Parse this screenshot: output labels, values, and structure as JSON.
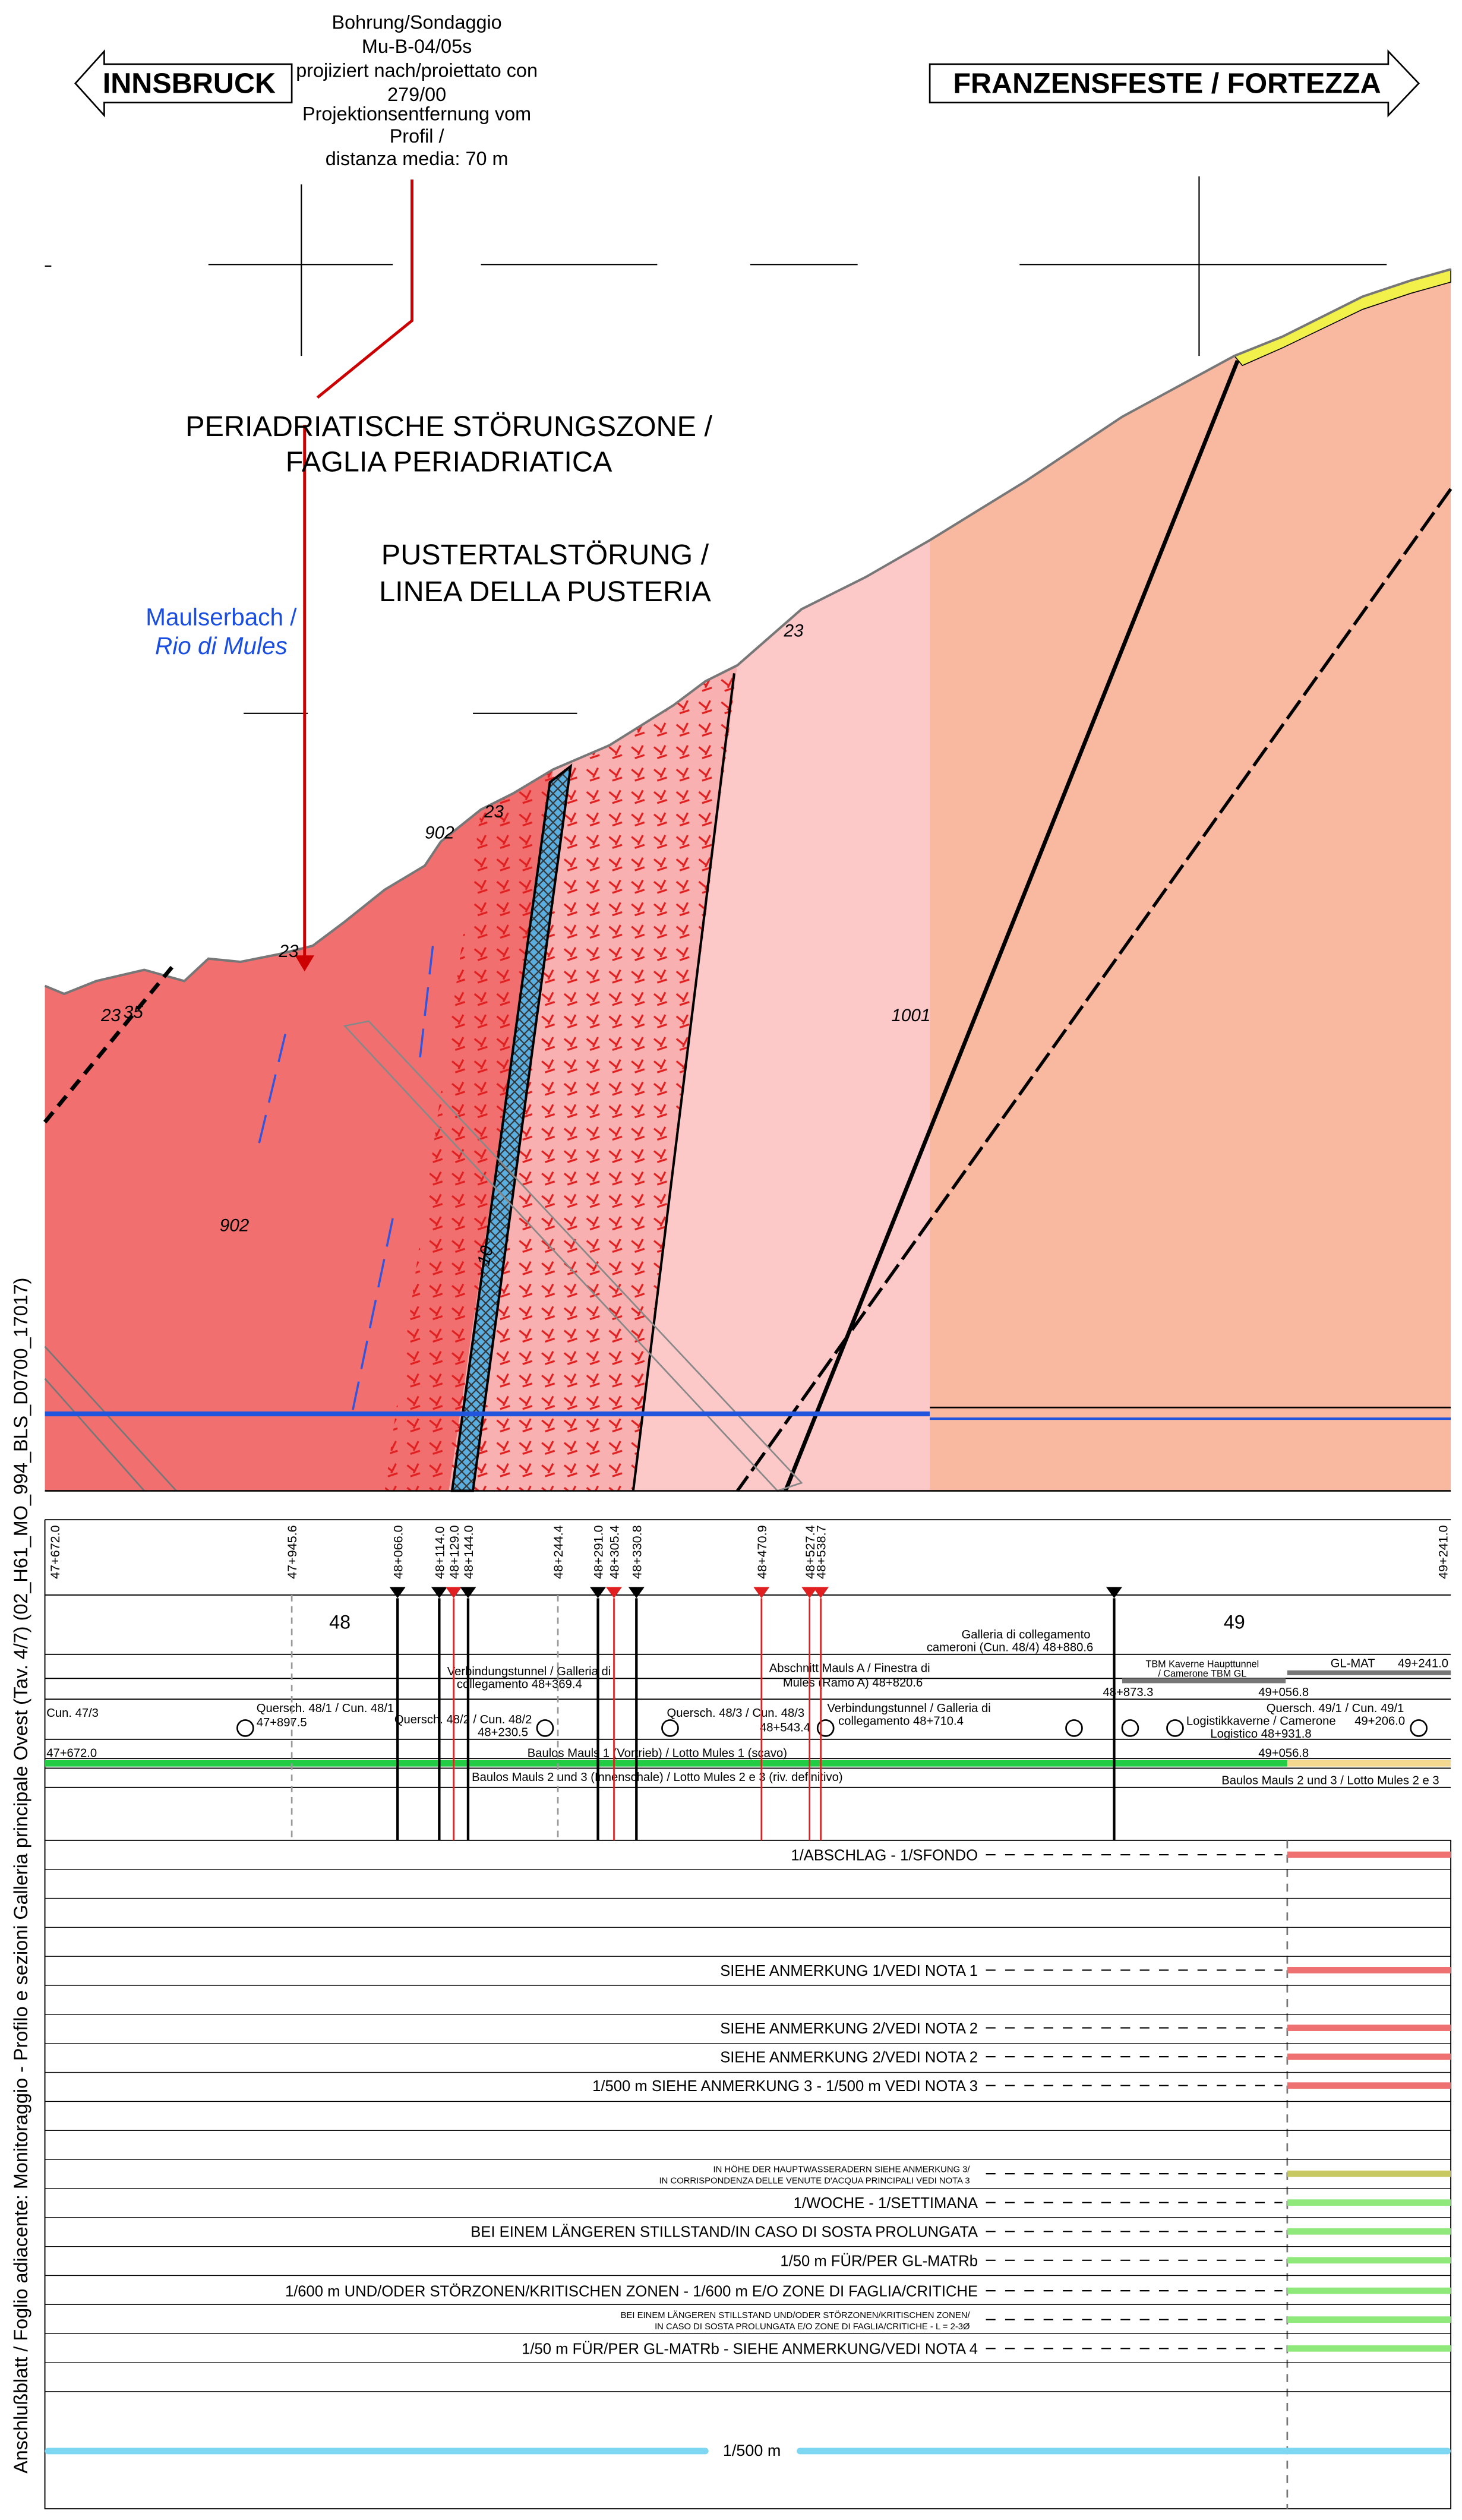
{
  "header": {
    "left": "INNSBRUCK",
    "right": "FRANZENSFESTE / FORTEZZA"
  },
  "borehole": [
    "Bohrung/Sondaggio",
    "Mu-B-04/05s",
    "projiziert nach/proiettato con",
    "279/00",
    "Projektionsentfernung vom",
    "Profil /",
    "distanza media: 70 m"
  ],
  "profile": {
    "fault_periadriatic": [
      "PERIADRIATISCHE STÖRUNGSZONE /",
      "FAGLIA PERIADRIATICA"
    ],
    "fault_pustertal": [
      "PUSTERTALSTÖRUNG /",
      "LINEA DELLA PUSTERIA"
    ],
    "stream": [
      "Maulserbach /",
      "Rio di Mules"
    ],
    "labels": [
      "23",
      "35",
      "23",
      "902",
      "23",
      "23",
      "902",
      "1001",
      "10"
    ]
  },
  "side_note": "Anschlußblatt / Foglio adiacente: Monitoraggio - Profilo e sezioni Galleria principale Ovest (Tav. 4/7) (02_H61_MO_994_BLS_D0700_17017)",
  "stations": {
    "labels": [
      "47+672.0",
      "47+945.6",
      "48+066.0",
      "48+114.0",
      "48+129.0",
      "48+144.0",
      "48+244.4",
      "48+291.0",
      "48+305.4",
      "48+330.8",
      "48+470.9",
      "48+527.4",
      "48+538.7",
      "49+241.0"
    ],
    "km": [
      "48",
      "49"
    ]
  },
  "structures": [
    "Galleria di collegamento",
    "cameroni (Cun. 48/4) 48+880.6",
    "TBM Kaverne Haupttunnel",
    "/ Camerone TBM GL",
    "GL-MAT",
    "49+241.0",
    "Verbindungstunnel / Galleria di",
    "collegamento 48+369.4",
    "Abschnitt Mauls A / Finestra di",
    "Mules (Ramo A) 48+820.6",
    "48+873.3",
    "49+056.8",
    "Cun. 47/3",
    "Quersch. 48/1 / Cun. 48/1",
    "47+897.5",
    "Quersch. 48/2 / Cun. 48/2",
    "48+230.5",
    "Quersch. 48/3 / Cun. 48/3",
    "48+543.4",
    "Verbindungstunnel / Galleria di",
    "collegamento 48+710.4",
    "Logistikkaverne / Camerone",
    "Logistico 48+931.8",
    "Quersch. 49/1 / Cun. 49/1",
    "49+206.0",
    "47+672.0",
    "Baulos Mauls 1 (Vortrieb) / Lotto Mules 1 (scavo)",
    "49+056.8",
    "Baulos Mauls 2 und 3 (Innenschale) / Lotto Mules 2 e 3 (riv. definitivo)",
    "Baulos Mauls 2 und 3 / Lotto Mules 2 e 3"
  ],
  "monitoring": {
    "rows": [
      [
        "1/ABSCHLAG - 1/SFONDO"
      ],
      [
        "SIEHE ANMERKUNG 1/VEDI NOTA 1"
      ],
      [
        "SIEHE ANMERKUNG 2/VEDI NOTA 2"
      ],
      [
        "SIEHE ANMERKUNG 2/VEDI NOTA 2"
      ],
      [
        "1/500 m SIEHE ANMERKUNG 3 - 1/500 m VEDI NOTA 3"
      ],
      [
        "IN HÖHE DER HAUPTWASSERADERN SIEHE ANMERKUNG 3/",
        "IN CORRISPONDENZA DELLE VENUTE D'ACQUA PRINCIPALI VEDI NOTA 3"
      ],
      [
        "1/WOCHE - 1/SETTIMANA"
      ],
      [
        "BEI EINEM LÄNGEREN STILLSTAND/IN CASO DI SOSTA PROLUNGATA"
      ],
      [
        "1/50 m FÜR/PER GL-MATRb"
      ],
      [
        "1/600 m UND/ODER STÖRZONEN/KRITISCHEN ZONEN - 1/600 m E/O ZONE DI FAGLIA/CRITICHE"
      ],
      [
        "BEI EINEM LÄNGEREN STILLSTAND UND/ODER STÖRZONEN/KRITISCHEN ZONEN/",
        "IN CASO DI SOSTA PROLUNGATA E/O ZONE DI FAGLIA/CRITICHE - L = 2-3Ø"
      ],
      [
        "1/50 m FÜR/PER GL-MATRb - SIEHE ANMERKUNG/VEDI NOTA 4"
      ]
    ],
    "interval": "1/500 m"
  }
}
